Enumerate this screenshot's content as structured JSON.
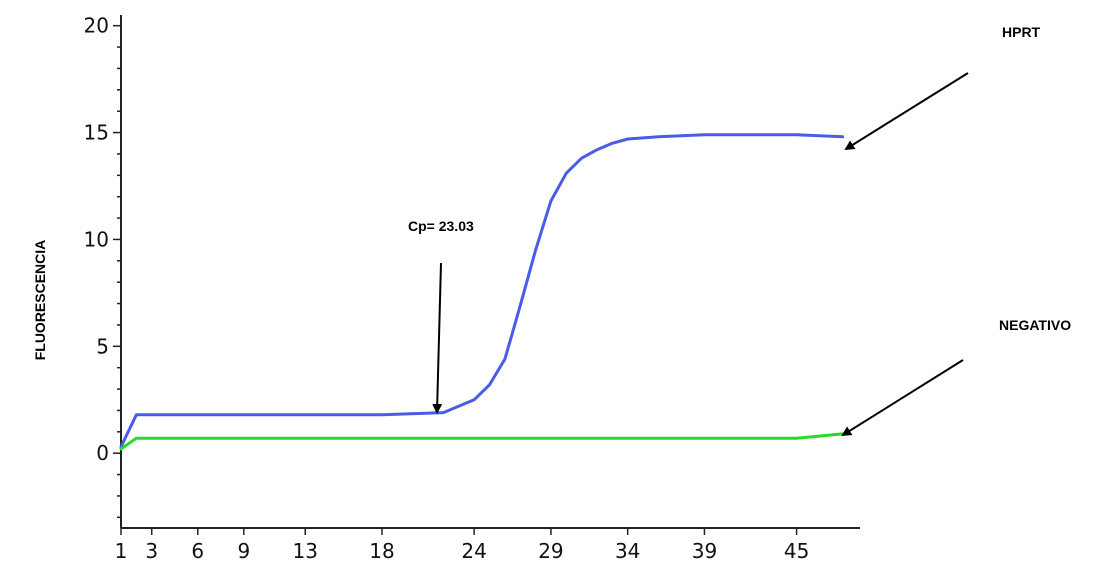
{
  "chart_data": {
    "type": "line",
    "ylabel": "FLUORESCENCIA",
    "xlabel": "",
    "xlim": [
      1,
      49
    ],
    "ylim": [
      -3.5,
      20.5
    ],
    "x_ticks": [
      1,
      3,
      6,
      9,
      13,
      18,
      24,
      29,
      34,
      39,
      45
    ],
    "y_ticks": [
      0,
      5,
      10,
      15,
      20
    ],
    "y_minor_step": 1,
    "grid": false,
    "series": [
      {
        "name": "HPRT",
        "color": "#4a5be8",
        "x": [
          1,
          2,
          3,
          6,
          9,
          13,
          18,
          22,
          24,
          25,
          26,
          27,
          28,
          29,
          30,
          31,
          32,
          33,
          34,
          36,
          39,
          42,
          45,
          48
        ],
        "y": [
          0.3,
          1.8,
          1.8,
          1.8,
          1.8,
          1.8,
          1.8,
          1.9,
          2.5,
          3.2,
          4.4,
          6.9,
          9.5,
          11.8,
          13.1,
          13.8,
          14.2,
          14.5,
          14.7,
          14.8,
          14.9,
          14.9,
          14.9,
          14.8
        ]
      },
      {
        "name": "NEGATIVO",
        "color": "#22dd22",
        "x": [
          1,
          2,
          3,
          6,
          9,
          13,
          18,
          24,
          29,
          34,
          39,
          45,
          48
        ],
        "y": [
          0.2,
          0.7,
          0.7,
          0.7,
          0.7,
          0.7,
          0.7,
          0.7,
          0.7,
          0.7,
          0.7,
          0.7,
          0.9
        ]
      }
    ],
    "annotations": [
      {
        "text": "HPRT",
        "target_series": "HPRT"
      },
      {
        "text": "NEGATIVO",
        "target_series": "NEGATIVO"
      },
      {
        "text": "Cp= 23.03",
        "value": 23.03
      }
    ]
  }
}
